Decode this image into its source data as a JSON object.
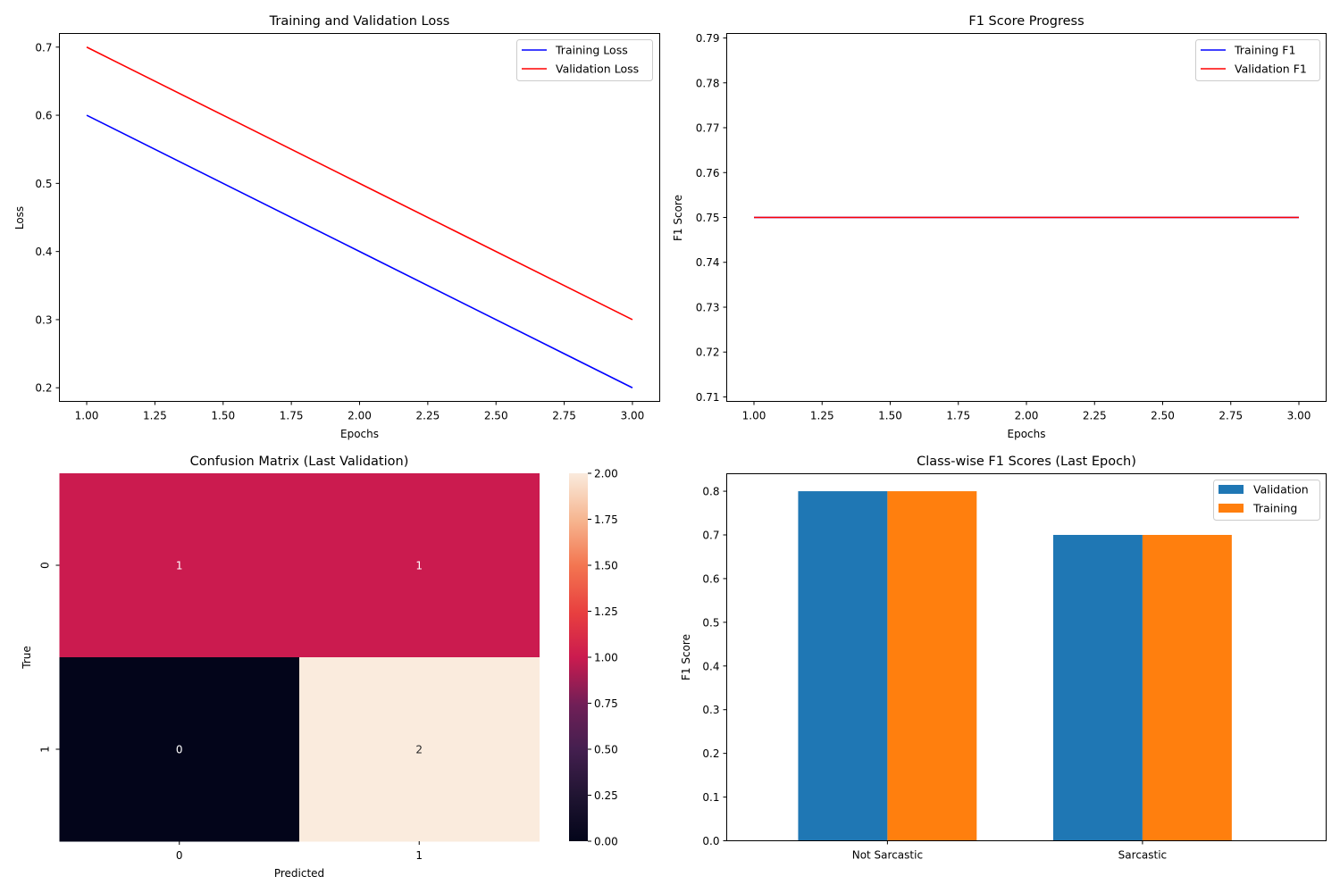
{
  "chart_data": [
    {
      "type": "line",
      "title": "Training and Validation Loss",
      "xlabel": "Epochs",
      "ylabel": "Loss",
      "xlim": [
        0.9,
        3.1
      ],
      "ylim": [
        0.18,
        0.72
      ],
      "xticks": [
        "1.00",
        "1.25",
        "1.50",
        "1.75",
        "2.00",
        "2.25",
        "2.50",
        "2.75",
        "3.00"
      ],
      "yticks": [
        "0.2",
        "0.3",
        "0.4",
        "0.5",
        "0.6",
        "0.7"
      ],
      "x": [
        1,
        2,
        3
      ],
      "series": [
        {
          "name": "Training Loss",
          "color": "#0000ff",
          "values": [
            0.6,
            0.4,
            0.2
          ]
        },
        {
          "name": "Validation Loss",
          "color": "#ff0000",
          "values": [
            0.7,
            0.5,
            0.3
          ]
        }
      ],
      "legend": "upper-right",
      "grid": false
    },
    {
      "type": "line",
      "title": "F1 Score Progress",
      "xlabel": "Epochs",
      "ylabel": "F1 Score",
      "xlim": [
        0.9,
        3.1
      ],
      "ylim": [
        0.709,
        0.791
      ],
      "xticks": [
        "1.00",
        "1.25",
        "1.50",
        "1.75",
        "2.00",
        "2.25",
        "2.50",
        "2.75",
        "3.00"
      ],
      "yticks": [
        "0.71",
        "0.72",
        "0.73",
        "0.74",
        "0.75",
        "0.76",
        "0.77",
        "0.78",
        "0.79"
      ],
      "x": [
        1,
        2,
        3
      ],
      "series": [
        {
          "name": "Training F1",
          "color": "#0000ff",
          "values": [
            0.75,
            0.75,
            0.75
          ]
        },
        {
          "name": "Validation F1",
          "color": "#ff0000",
          "values": [
            0.75,
            0.75,
            0.75
          ]
        }
      ],
      "legend": "upper-right",
      "grid": false
    },
    {
      "type": "heatmap",
      "title": "Confusion Matrix (Last Validation)",
      "xlabel": "Predicted",
      "ylabel": "True",
      "x_categories": [
        "0",
        "1"
      ],
      "y_categories": [
        "0",
        "1"
      ],
      "values": [
        [
          1,
          1
        ],
        [
          0,
          2
        ]
      ],
      "value_labels": [
        [
          "1",
          "1"
        ],
        [
          "0",
          "2"
        ]
      ],
      "colorbar": {
        "range": [
          0,
          2
        ],
        "ticks": [
          "0.00",
          "0.25",
          "0.50",
          "0.75",
          "1.00",
          "1.25",
          "1.50",
          "1.75",
          "2.00"
        ],
        "colormap": "rocket",
        "low_color": "#03051a",
        "mid_color": "#cb1b4f",
        "high_color": "#faebdd"
      }
    },
    {
      "type": "bar",
      "title": "Class-wise F1 Scores (Last Epoch)",
      "xlabel": "",
      "ylabel": "F1 Score",
      "ylim": [
        0,
        0.84
      ],
      "yticks": [
        "0.0",
        "0.1",
        "0.2",
        "0.3",
        "0.4",
        "0.5",
        "0.6",
        "0.7",
        "0.8"
      ],
      "categories": [
        "Not Sarcastic",
        "Sarcastic"
      ],
      "series": [
        {
          "name": "Validation",
          "color": "#1f77b4",
          "values": [
            0.8,
            0.7
          ]
        },
        {
          "name": "Training",
          "color": "#ff7f0e",
          "values": [
            0.8,
            0.7
          ]
        }
      ],
      "legend": "upper-right",
      "grid": false
    }
  ]
}
